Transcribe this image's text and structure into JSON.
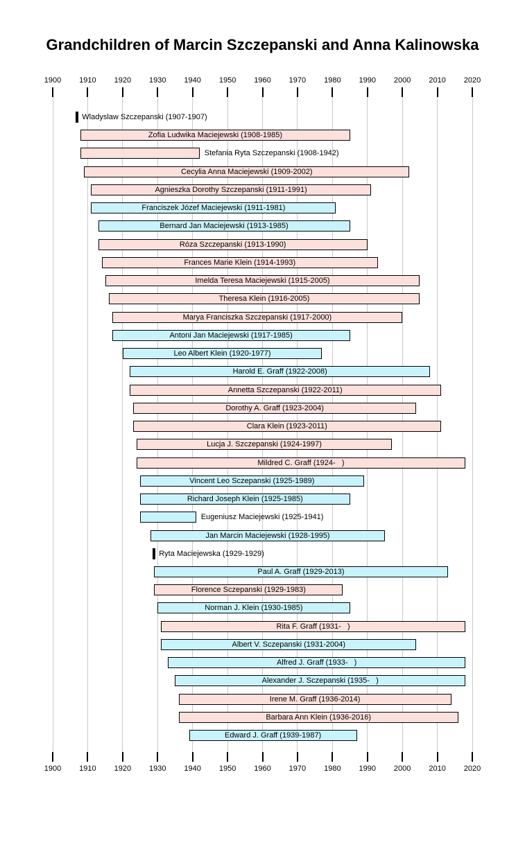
{
  "title": "Grandchildren of Marcin Szczepanski and Anna Kalinowska",
  "chart_data": {
    "type": "bar",
    "subtype": "timeline-lifespan",
    "title": "Grandchildren of Marcin Szczepanski and Anna Kalinowska",
    "legend_position": "none",
    "grid": "vertical-decade-lines",
    "axis": {
      "min": 1900,
      "max": 2020,
      "tick_step": 10,
      "position": "top-and-bottom",
      "ticks": [
        1900,
        1910,
        1920,
        1930,
        1940,
        1950,
        1960,
        1970,
        1980,
        1990,
        2000,
        2010,
        2020
      ]
    },
    "living_bar_end_year": 2018,
    "colors": {
      "female_fill": "#fbe0dc",
      "male_fill": "#c9f3fa",
      "bar_border": "#000000",
      "zero_duration_marker": "#000000",
      "gridline": "#c9c9c9",
      "text": "#000000"
    },
    "people": [
      {
        "name": "Wladyslaw Szczepanski",
        "birth": 1907,
        "death": 1907,
        "label": "Wladyslaw Szczepanski (1907-1907)",
        "color": "marker",
        "label_inside": false
      },
      {
        "name": "Zofia Ludwika Maciejewski",
        "birth": 1908,
        "death": 1985,
        "label": "Zofia Ludwika Maciejewski (1908-1985)",
        "color": "pink",
        "label_inside": true
      },
      {
        "name": "Stefania Ryta Szczepanski",
        "birth": 1908,
        "death": 1942,
        "label": "Stefania Ryta Szczepanski (1908-1942)",
        "color": "pink",
        "label_inside": false
      },
      {
        "name": "Cecylia Anna Maciejewski",
        "birth": 1909,
        "death": 2002,
        "label": "Cecylia Anna Maciejewski (1909-2002)",
        "color": "pink",
        "label_inside": true
      },
      {
        "name": "Agnieszka Dorothy Szczepanski",
        "birth": 1911,
        "death": 1991,
        "label": "Agnieszka Dorothy Szczepanski (1911-1991)",
        "color": "pink",
        "label_inside": true
      },
      {
        "name": "Franciszek Józef Maciejewski",
        "birth": 1911,
        "death": 1981,
        "label": "Franciszek Józef Maciejewski (1911-1981)",
        "color": "cyan",
        "label_inside": true
      },
      {
        "name": "Bernard Jan Maciejewski",
        "birth": 1913,
        "death": 1985,
        "label": "Bernard Jan Maciejewski (1913-1985)",
        "color": "cyan",
        "label_inside": true
      },
      {
        "name": "Róza Szczepanski",
        "birth": 1913,
        "death": 1990,
        "label": "Róza Szczepanski (1913-1990)",
        "color": "pink",
        "label_inside": true
      },
      {
        "name": "Frances Marie Klein",
        "birth": 1914,
        "death": 1993,
        "label": "Frances Marie Klein (1914-1993)",
        "color": "pink",
        "label_inside": true
      },
      {
        "name": "Imelda Teresa Maciejewski",
        "birth": 1915,
        "death": 2005,
        "label": "Imelda Teresa Maciejewski (1915-2005)",
        "color": "pink",
        "label_inside": true
      },
      {
        "name": "Theresa Klein",
        "birth": 1916,
        "death": 2005,
        "label": "Theresa Klein (1916-2005)",
        "color": "pink",
        "label_inside": true
      },
      {
        "name": "Marya Franciszka Szczepanski",
        "birth": 1917,
        "death": 2000,
        "label": "Marya Franciszka Szczepanski (1917-2000)",
        "color": "pink",
        "label_inside": true
      },
      {
        "name": "Antoni Jan Maciejewski",
        "birth": 1917,
        "death": 1985,
        "label": "Antoni Jan Maciejewski (1917-1985)",
        "color": "cyan",
        "label_inside": true
      },
      {
        "name": "Leo Albert Klein",
        "birth": 1920,
        "death": 1977,
        "label": "Leo Albert Klein (1920-1977)",
        "color": "cyan",
        "label_inside": true
      },
      {
        "name": "Harold E. Graff",
        "birth": 1922,
        "death": 2008,
        "label": "Harold E. Graff (1922-2008)",
        "color": "cyan",
        "label_inside": true
      },
      {
        "name": "Annetta Szczepanski",
        "birth": 1922,
        "death": 2011,
        "label": "Annetta Szczepanski (1922-2011)",
        "color": "pink",
        "label_inside": true
      },
      {
        "name": "Dorothy A. Graff",
        "birth": 1923,
        "death": 2004,
        "label": "Dorothy A. Graff (1923-2004)",
        "color": "pink",
        "label_inside": true
      },
      {
        "name": "Clara Klein",
        "birth": 1923,
        "death": 2011,
        "label": "Clara Klein (1923-2011)",
        "color": "pink",
        "label_inside": true
      },
      {
        "name": "Lucja J. Szczepanski",
        "birth": 1924,
        "death": 1997,
        "label": "Lucja J. Szczepanski (1924-1997)",
        "color": "pink",
        "label_inside": true
      },
      {
        "name": "Mildred C. Graff",
        "birth": 1924,
        "death": null,
        "label": "Mildred C. Graff (1924-   )",
        "color": "pink",
        "label_inside": true
      },
      {
        "name": "Vincent Leo Sczepanski",
        "birth": 1925,
        "death": 1989,
        "label": "Vincent Leo Sczepanski (1925-1989)",
        "color": "cyan",
        "label_inside": true
      },
      {
        "name": "Richard Joseph Klein",
        "birth": 1925,
        "death": 1985,
        "label": "Richard Joseph Klein (1925-1985)",
        "color": "cyan",
        "label_inside": true
      },
      {
        "name": "Eugeniusz Maciejewski",
        "birth": 1925,
        "death": 1941,
        "label": "Eugeniusz Maciejewski (1925-1941)",
        "color": "cyan",
        "label_inside": false
      },
      {
        "name": "Jan Marcin Maciejewski",
        "birth": 1928,
        "death": 1995,
        "label": "Jan Marcin Maciejewski (1928-1995)",
        "color": "cyan",
        "label_inside": true
      },
      {
        "name": "Ryta Maciejewska",
        "birth": 1929,
        "death": 1929,
        "label": "Ryta Maciejewska (1929-1929)",
        "color": "marker",
        "label_inside": false
      },
      {
        "name": "Paul A. Graff",
        "birth": 1929,
        "death": 2013,
        "label": "Paul A. Graff (1929-2013)",
        "color": "cyan",
        "label_inside": true
      },
      {
        "name": "Florence Sczepanski",
        "birth": 1929,
        "death": 1983,
        "label": "Florence Sczepanski (1929-1983)",
        "color": "pink",
        "label_inside": true
      },
      {
        "name": "Norman J. Klein",
        "birth": 1930,
        "death": 1985,
        "label": "Norman J. Klein (1930-1985)",
        "color": "cyan",
        "label_inside": true
      },
      {
        "name": "Rita F. Graff",
        "birth": 1931,
        "death": null,
        "label": "Rita F. Graff (1931-   )",
        "color": "pink",
        "label_inside": true
      },
      {
        "name": "Albert V. Sczepanski",
        "birth": 1931,
        "death": 2004,
        "label": "Albert V. Sczepanski (1931-2004)",
        "color": "cyan",
        "label_inside": true
      },
      {
        "name": "Alfred J. Graff",
        "birth": 1933,
        "death": null,
        "label": "Alfred J. Graff (1933-   )",
        "color": "cyan",
        "label_inside": true
      },
      {
        "name": "Alexander J. Sczepanski",
        "birth": 1935,
        "death": null,
        "label": "Alexander J. Sczepanski (1935-   )",
        "color": "cyan",
        "label_inside": true
      },
      {
        "name": "Irene M. Graff",
        "birth": 1936,
        "death": 2014,
        "label": "Irene M. Graff (1936-2014)",
        "color": "pink",
        "label_inside": true
      },
      {
        "name": "Barbara Ann Klein",
        "birth": 1936,
        "death": 2016,
        "label": "Barbara Ann Klein (1936-2016)",
        "color": "pink",
        "label_inside": true
      },
      {
        "name": "Edward J. Graff",
        "birth": 1939,
        "death": 1987,
        "label": "Edward J. Graff (1939-1987)",
        "color": "cyan",
        "label_inside": true
      }
    ]
  }
}
